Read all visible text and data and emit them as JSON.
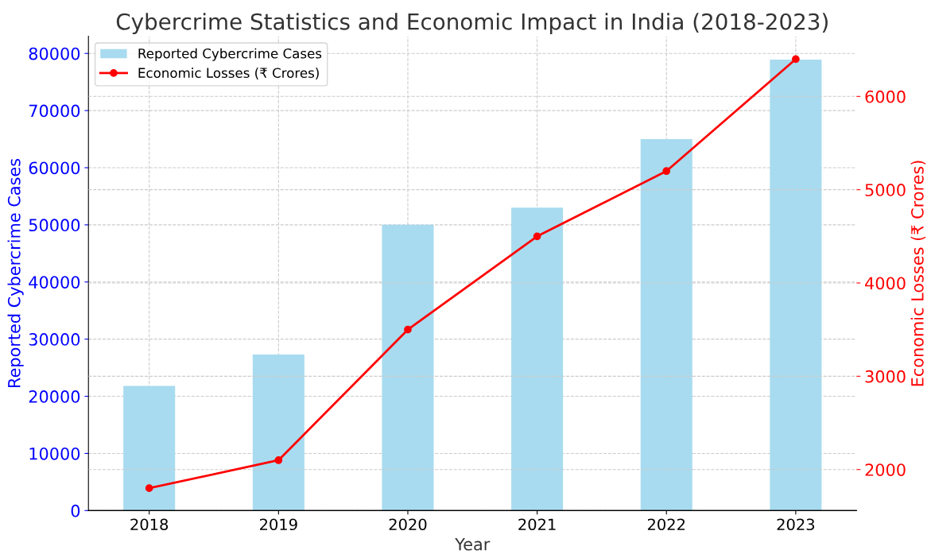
{
  "chart_data": {
    "type": "bar",
    "title": "Cybercrime Statistics and Economic Impact in India (2018-2023)",
    "categories": [
      "2018",
      "2019",
      "2020",
      "2021",
      "2022",
      "2023"
    ],
    "xlabel": "Year",
    "ylabel": "Reported Cybercrime Cases",
    "y2label": "Economic Losses (₹ Crores)",
    "series": [
      {
        "name": "Reported Cybercrime Cases",
        "color": "#a8dbef",
        "values": [
          21800,
          27300,
          50000,
          53000,
          65000,
          78900
        ]
      },
      {
        "name": "Economic Losses (₹ Crores)",
        "type": "line",
        "axis": "y2",
        "color": "#ff0000",
        "values": [
          1800,
          2100,
          3500,
          4500,
          5200,
          6400
        ]
      }
    ],
    "ylim": [
      0,
      83000
    ],
    "yticks": [
      0,
      10000,
      20000,
      30000,
      40000,
      50000,
      60000,
      70000,
      80000
    ],
    "y2lim": [
      1560,
      6645
    ],
    "y2ticks": [
      2000,
      3000,
      4000,
      5000,
      6000
    ],
    "grid": true,
    "legend": "top left",
    "marker": "circle",
    "line_style": "solid"
  }
}
